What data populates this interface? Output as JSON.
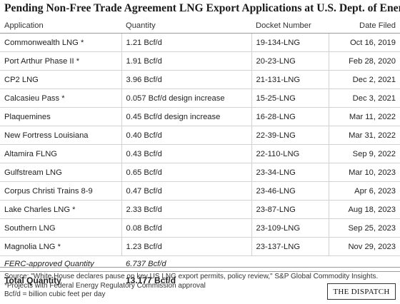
{
  "title": "Pending Non-Free Trade Agreement LNG Export Applications at U.S. Dept. of Energy",
  "table": {
    "headers": {
      "application": "Application",
      "quantity": "Quantity",
      "docket": "Docket Number",
      "date": "Date Filed"
    },
    "rows": [
      {
        "application": "Commonwealth LNG *",
        "quantity": "1.21 Bcf/d",
        "docket": "19-134-LNG",
        "date": "Oct 16, 2019"
      },
      {
        "application": "Port Arthur Phase II *",
        "quantity": "1.91 Bcf/d",
        "docket": "20-23-LNG",
        "date": "Feb 28, 2020"
      },
      {
        "application": "CP2 LNG",
        "quantity": "3.96 Bcf/d",
        "docket": "21-131-LNG",
        "date": "Dec 2, 2021"
      },
      {
        "application": "Calcasieu Pass *",
        "quantity": "0.057 Bcf/d design increase",
        "docket": "15-25-LNG",
        "date": "Dec 3, 2021"
      },
      {
        "application": "Plaquemines",
        "quantity": "0.45 Bcf/d design increase",
        "docket": "16-28-LNG",
        "date": "Mar 11, 2022"
      },
      {
        "application": "New Fortress Louisiana",
        "quantity": "0.40 Bcf/d",
        "docket": "22-39-LNG",
        "date": "Mar 31, 2022"
      },
      {
        "application": "Altamira FLNG",
        "quantity": "0.43 Bcf/d",
        "docket": "22-110-LNG",
        "date": "Sep 9, 2022"
      },
      {
        "application": "Gulfstream LNG",
        "quantity": "0.65 Bcf/d",
        "docket": "23-34-LNG",
        "date": "Mar 10, 2023"
      },
      {
        "application": "Corpus Christi Trains 8-9",
        "quantity": "0.47 Bcf/d",
        "docket": "23-46-LNG",
        "date": "Apr 6, 2023"
      },
      {
        "application": "Lake Charles LNG *",
        "quantity": "2.33 Bcf/d",
        "docket": "23-87-LNG",
        "date": "Aug 18, 2023"
      },
      {
        "application": "Southern LNG",
        "quantity": "0.08 Bcf/d",
        "docket": "23-109-LNG",
        "date": "Sep 25, 2023"
      },
      {
        "application": "Magnolia LNG *",
        "quantity": "1.23 Bcf/d",
        "docket": "23-137-LNG",
        "date": "Nov 29, 2023"
      }
    ],
    "ferc": {
      "label": "FERC-approved Quantity",
      "value": "6.737 Bcf/d"
    },
    "total": {
      "label": "Total Quantity",
      "value": "13.177 Bcf/d"
    }
  },
  "footer": {
    "source": "Source: \"White House declares pause on key US LNG export permits, policy review,\" S&P Global Commodity Insights.",
    "note": "*Projects with Federal Energy Regulatory Commission approval",
    "unit": "Bcf/d = billion cubic feet per day",
    "brand": "THE DISPATCH"
  }
}
